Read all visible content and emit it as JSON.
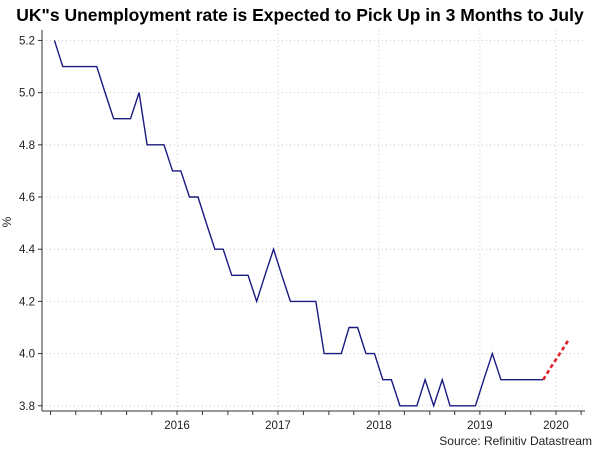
{
  "chart_data": {
    "type": "line",
    "title": "UK\"s Unemployment rate is Expected to Pick Up in 3 Months to July",
    "ylabel": "%",
    "xlabel": "",
    "source": "Source: Refinitiv Datastream",
    "ylim": [
      3.78,
      5.24
    ],
    "yticks": [
      "3.8",
      "4.0",
      "4.2",
      "4.4",
      "4.6",
      "4.8",
      "5.0",
      "5.2"
    ],
    "xlim": [
      "2015-03-01",
      "2020-07-15"
    ],
    "xticks": [
      {
        "label": "2016",
        "date": "2016-07-01"
      },
      {
        "label": "2017",
        "date": "2017-07-01"
      },
      {
        "label": "2018",
        "date": "2018-07-01"
      },
      {
        "label": "2019",
        "date": "2019-07-01"
      },
      {
        "label": "2020",
        "date": "2020-04-01"
      }
    ],
    "grid": true,
    "series": [
      {
        "color": "#1a1a80",
        "style": "solid",
        "x": [
          "2015-04",
          "2015-05",
          "2015-06",
          "2015-07",
          "2015-08",
          "2015-09",
          "2015-10",
          "2015-11",
          "2015-12",
          "2016-01",
          "2016-02",
          "2016-03",
          "2016-04",
          "2016-05",
          "2016-06",
          "2016-07",
          "2016-08",
          "2016-09",
          "2016-10",
          "2016-11",
          "2016-12",
          "2017-01",
          "2017-02",
          "2017-03",
          "2017-04",
          "2017-05",
          "2017-06",
          "2017-07",
          "2017-08",
          "2017-09",
          "2017-10",
          "2017-11",
          "2017-12",
          "2018-01",
          "2018-02",
          "2018-03",
          "2018-04",
          "2018-05",
          "2018-06",
          "2018-07",
          "2018-08",
          "2018-09",
          "2018-10",
          "2018-11",
          "2018-12",
          "2019-01",
          "2019-02",
          "2019-03",
          "2019-04",
          "2019-05",
          "2019-06",
          "2019-07",
          "2019-08",
          "2019-09",
          "2019-10",
          "2019-11",
          "2019-12",
          "2020-01",
          "2020-02"
        ],
        "values": [
          5.2,
          5.1,
          5.1,
          5.1,
          5.1,
          5.1,
          5.0,
          4.9,
          4.9,
          4.9,
          5.0,
          4.8,
          4.8,
          4.8,
          4.7,
          4.7,
          4.6,
          4.6,
          4.5,
          4.4,
          4.4,
          4.3,
          4.3,
          4.3,
          4.2,
          4.3,
          4.4,
          4.3,
          4.2,
          4.2,
          4.2,
          4.2,
          4.0,
          4.0,
          4.0,
          4.1,
          4.1,
          4.0,
          4.0,
          3.9,
          3.9,
          3.8,
          3.8,
          3.8,
          3.9,
          3.8,
          3.9,
          3.8,
          3.8,
          3.8,
          3.8,
          3.9,
          4.0,
          3.9,
          3.9,
          3.9,
          3.9,
          3.9,
          3.9
        ]
      },
      {
        "color": "#e0202a",
        "style": "dotted",
        "x": [
          "2020-02",
          "2020-03",
          "2020-04",
          "2020-05"
        ],
        "values": [
          3.9,
          3.95,
          4.0,
          4.05
        ]
      }
    ]
  }
}
